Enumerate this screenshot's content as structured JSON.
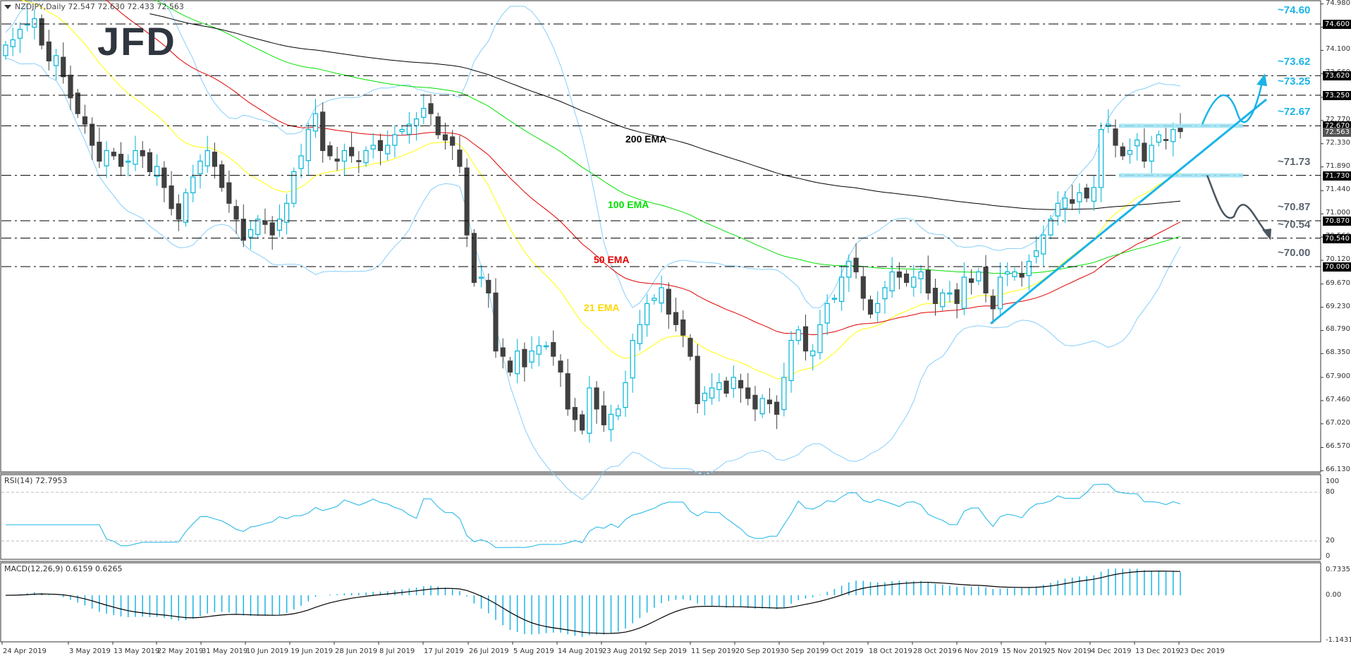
{
  "header": {
    "symbol_label": "NZDJPY,Daily  72.547 72.630 72.433 72.563",
    "logo": "JFD"
  },
  "indicators": {
    "rsi_label": "RSI(14) 72.7953",
    "macd_label": "MACD(12,26,9) 0.6159 0.6265"
  },
  "colors": {
    "bull_candle": "#00b4d8",
    "bear_candle": "#404040",
    "ema21": "#ffff00",
    "ema50": "#e00000",
    "ema100": "#00e000",
    "ema200": "#000000",
    "bollinger": "#87cefa",
    "trend": "#1ab4e6",
    "bear_path": "#4a5560",
    "level_cyan": "#1ab4e6",
    "level_gray": "#5a6470"
  },
  "chart_data": [
    {
      "type": "candlestick",
      "title": "NZDJPY, Daily",
      "ohlc_last": {
        "open": 72.547,
        "high": 72.63,
        "low": 72.433,
        "close": 72.563
      },
      "ylim": [
        66.13,
        74.98
      ],
      "price_ticks": [
        "74.980",
        "74.540",
        "74.100",
        "73.660",
        "73.210",
        "72.770",
        "72.330",
        "71.890",
        "71.440",
        "71.000",
        "70.560",
        "70.120",
        "69.670",
        "69.230",
        "68.790",
        "68.350",
        "67.900",
        "67.460",
        "67.020",
        "66.570",
        "66.130"
      ],
      "x_dates": [
        "24 Apr 2019",
        "3 May 2019",
        "13 May 2019",
        "22 May 2019",
        "31 May 2019",
        "10 Jun 2019",
        "19 Jun 2019",
        "28 Jun 2019",
        "8 Jul 2019",
        "17 Jul 2019",
        "26 Jul 2019",
        "5 Aug 2019",
        "14 Aug 2019",
        "23 Aug 2019",
        "2 Sep 2019",
        "11 Sep 2019",
        "20 Sep 2019",
        "30 Sep 2019",
        "9 Oct 2019",
        "18 Oct 2019",
        "28 Oct 2019",
        "6 Nov 2019",
        "15 Nov 2019",
        "25 Nov 2019",
        "4 Dec 2019",
        "13 Dec 2019",
        "23 Dec 2019"
      ],
      "closes_approx": [
        74.2,
        74.3,
        74.5,
        74.6,
        74.7,
        74.2,
        73.9,
        74.0,
        73.6,
        73.2,
        72.9,
        72.7,
        72.3,
        72.0,
        72.2,
        72.1,
        71.9,
        72.0,
        72.2,
        72.1,
        71.8,
        71.9,
        71.5,
        71.1,
        70.9,
        71.4,
        71.7,
        72.0,
        72.2,
        71.9,
        71.5,
        71.2,
        70.9,
        70.5,
        70.7,
        70.9,
        70.8,
        70.6,
        70.9,
        71.2,
        71.8,
        72.1,
        72.6,
        72.9,
        72.2,
        72.1,
        72.0,
        72.2,
        72.1,
        72.0,
        72.2,
        72.3,
        72.2,
        72.3,
        72.5,
        72.6,
        72.7,
        72.8,
        73.0,
        72.9,
        72.5,
        72.4,
        72.3,
        71.9,
        70.6,
        69.7,
        69.8,
        69.5,
        68.4,
        68.3,
        68.0,
        68.4,
        68.1,
        68.4,
        68.5,
        68.5,
        68.3,
        68.0,
        67.3,
        67.1,
        66.9,
        67.7,
        67.3,
        67.0,
        67.2,
        67.3,
        67.8,
        68.6,
        68.9,
        69.3,
        69.4,
        69.6,
        69.1,
        68.9,
        68.7,
        68.3,
        67.4,
        67.6,
        67.7,
        67.8,
        67.6,
        67.9,
        67.7,
        67.5,
        67.3,
        67.5,
        67.4,
        67.2,
        67.9,
        68.6,
        68.8,
        68.4,
        68.4,
        68.9,
        69.3,
        69.4,
        69.8,
        70.1,
        69.9,
        69.4,
        69.1,
        69.3,
        69.6,
        69.9,
        69.8,
        69.7,
        69.8,
        69.9,
        69.5,
        69.3,
        69.5,
        69.5,
        69.3,
        69.8,
        69.7,
        69.9,
        69.5,
        69.2,
        69.8,
        69.9,
        69.9,
        69.8,
        70.1,
        70.3,
        70.6,
        70.9,
        71.2,
        71.3,
        71.2,
        71.4,
        71.3,
        71.5,
        72.6,
        72.7,
        72.3,
        72.1,
        72.2,
        72.4,
        72.0,
        72.3,
        72.5,
        72.4,
        72.6,
        72.56
      ],
      "moving_averages": [
        {
          "name": "21 EMA",
          "label": "21 EMA",
          "color": "#ffd700"
        },
        {
          "name": "50 EMA",
          "label": "50 EMA",
          "color": "#e00000"
        },
        {
          "name": "100 EMA",
          "label": "100 EMA",
          "color": "#00e000"
        },
        {
          "name": "200 EMA",
          "label": "200 EMA",
          "color": "#000000"
        }
      ],
      "horizontal_levels": [
        {
          "label": "~74.60",
          "value": 74.6,
          "box": "74.600",
          "color": "#1ab4e6"
        },
        {
          "label": "~73.62",
          "value": 73.62,
          "box": "73.620",
          "color": "#1ab4e6"
        },
        {
          "label": "~73.25",
          "value": 73.25,
          "box": "73.250",
          "color": "#1ab4e6"
        },
        {
          "label": "~72.67",
          "value": 72.67,
          "box": "72.670",
          "color": "#1ab4e6"
        },
        {
          "label": "~71.73",
          "value": 71.73,
          "box": "71.730",
          "color": "#5a6470"
        },
        {
          "label": "~70.87",
          "value": 70.87,
          "box": "70.870",
          "color": "#5a6470"
        },
        {
          "label": "~70.54",
          "value": 70.54,
          "box": "70.540",
          "color": "#5a6470"
        },
        {
          "label": "~70.00",
          "value": 70.0,
          "box": "70.000",
          "color": "#5a6470"
        }
      ],
      "current_price_box": "72.563",
      "annotations": [
        "Upward trend line from ~68.9 (mid-Nov)",
        "Range box 71.73-72.67",
        "Bullish path arrow to 73.62",
        "Bearish path arrow to 70.54"
      ]
    },
    {
      "type": "line",
      "title": "RSI(14) 72.7953",
      "ylim": [
        0,
        100
      ],
      "levels": [
        20,
        80
      ],
      "ticks": [
        "100",
        "80",
        "20",
        "0"
      ],
      "last_value": 72.7953
    },
    {
      "type": "bar",
      "title": "MACD(12,26,9) 0.6159 0.6265",
      "ylim": [
        -1.1431,
        0.7335
      ],
      "ticks": [
        "0.7335",
        "0.00",
        "-1.1431"
      ],
      "main": 0.6159,
      "signal": 0.6265
    }
  ]
}
